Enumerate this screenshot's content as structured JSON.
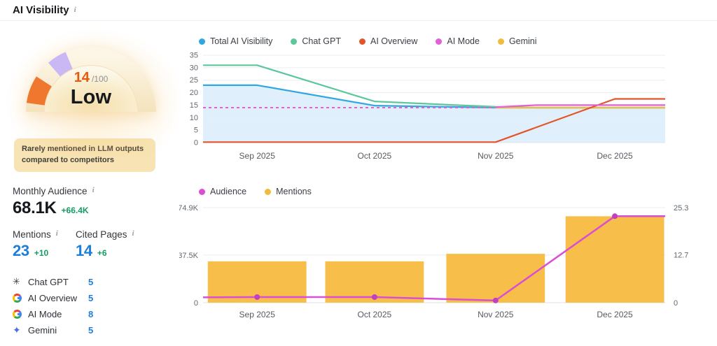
{
  "header": {
    "title": "AI Visibility"
  },
  "colors": {
    "link_blue": "#1d7ed9",
    "positive_green": "#169b62"
  },
  "gauge": {
    "score": "14",
    "score_suffix": "/100",
    "level": "Low",
    "note": "Rarely mentioned in LLM outputs compared to competitors",
    "colors": {
      "score": "#e8590c",
      "segment_low": "#f0772e",
      "segment_marker": "#c9b8f4",
      "ring_top": "#fdf6e6",
      "ring_bottom": "#f4e3bd",
      "inner_center": "#f5deac",
      "inner_mid": "#f9ecca",
      "inner_edge": "#fdf8ec"
    }
  },
  "stats": {
    "monthly_audience": {
      "label": "Monthly Audience",
      "value": "68.1K",
      "change": "+66.4K"
    },
    "mentions": {
      "label": "Mentions",
      "value": "23",
      "change": "+10"
    },
    "cited_pages": {
      "label": "Cited Pages",
      "value": "14",
      "change": "+6"
    }
  },
  "platforms": [
    {
      "icon": "chatgpt-icon",
      "label": "Chat GPT",
      "value": "5"
    },
    {
      "icon": "google-icon",
      "label": "AI Overview",
      "value": "5"
    },
    {
      "icon": "google-icon",
      "label": "AI Mode",
      "value": "8"
    },
    {
      "icon": "gemini-icon",
      "label": "Gemini",
      "value": "5"
    }
  ],
  "chart_data": [
    {
      "type": "line",
      "x_ticks": [
        {
          "label": "Sep 2025",
          "t": 0.117
        },
        {
          "label": "Oct 2025",
          "t": 0.371
        },
        {
          "label": "Nov 2025",
          "t": 0.633
        },
        {
          "label": "Dec 2025",
          "t": 0.891
        }
      ],
      "ylim": [
        0,
        35
      ],
      "y_ticks": [
        0,
        5,
        10,
        15,
        20,
        25,
        30,
        35
      ],
      "grid": true,
      "legend_position": "top",
      "legend": [
        {
          "label": "Total AI Visibility",
          "color": "#2fa8df"
        },
        {
          "label": "Chat GPT",
          "color": "#5cc79c"
        },
        {
          "label": "AI Overview",
          "color": "#e2552b"
        },
        {
          "label": "AI Mode",
          "color": "#e25fd8"
        },
        {
          "label": "Gemini",
          "color": "#f2bb40"
        }
      ],
      "series": [
        {
          "name": "Total AI Visibility",
          "color": "#2fa8df",
          "area_fill": "#d9ecfa",
          "points": [
            [
              0,
              23
            ],
            [
              0.117,
              23
            ],
            [
              0.371,
              14.8
            ],
            [
              0.633,
              14
            ],
            [
              1,
              14
            ]
          ]
        },
        {
          "name": "Chat GPT",
          "color": "#5cc79c",
          "points": [
            [
              0,
              31
            ],
            [
              0.117,
              31
            ],
            [
              0.371,
              16.5
            ],
            [
              0.633,
              14.3
            ],
            [
              0.72,
              14
            ],
            [
              1,
              14
            ]
          ]
        },
        {
          "name": "Gemini",
          "color": "#f2bb40",
          "points": [
            [
              0.633,
              14
            ],
            [
              1,
              14
            ]
          ]
        },
        {
          "name": "AI Overview",
          "color": "#e2552b",
          "points": [
            [
              0,
              0.2
            ],
            [
              0.633,
              0.2
            ],
            [
              0.891,
              17.5
            ],
            [
              1,
              17.5
            ]
          ]
        },
        {
          "name": "AI Mode",
          "color": "#e25fd8",
          "segments": [
            {
              "dashed": true,
              "points": [
                [
                  0,
                  14
                ],
                [
                  0.633,
                  14
                ]
              ]
            },
            {
              "dashed": false,
              "points": [
                [
                  0.633,
                  14.2
                ],
                [
                  0.72,
                  15
                ],
                [
                  1,
                  15
                ]
              ]
            }
          ]
        }
      ]
    },
    {
      "type": "combo_bar_line",
      "x_ticks": [
        {
          "label": "Sep 2025",
          "t": 0.117
        },
        {
          "label": "Oct 2025",
          "t": 0.371
        },
        {
          "label": "Nov 2025",
          "t": 0.633
        },
        {
          "label": "Dec 2025",
          "t": 0.891
        }
      ],
      "legend_position": "top",
      "legend": [
        {
          "label": "Audience",
          "color": "#d94ed2"
        },
        {
          "label": "Mentions",
          "color": "#f2bb40"
        }
      ],
      "left_axis": {
        "max": 74.9,
        "ticks": [
          {
            "label": "74.9K",
            "v": 74.9
          },
          {
            "label": "37.5K",
            "v": 37.5
          },
          {
            "label": "0",
            "v": 0
          }
        ]
      },
      "right_axis": {
        "max": 25.3,
        "ticks": [
          {
            "label": "25.3",
            "v": 25.3
          },
          {
            "label": "12.7",
            "v": 12.7
          },
          {
            "label": "0",
            "v": 0
          }
        ]
      },
      "bars": {
        "name": "Mentions",
        "color": "#f8be4a",
        "axis": "right",
        "values": [
          11,
          11,
          13,
          23
        ]
      },
      "line": {
        "name": "Audience",
        "color": "#d94ed2",
        "dot_color": "#c23fc0",
        "axis": "left",
        "points": [
          [
            0,
            4.2
          ],
          [
            0.117,
            4.4
          ],
          [
            0.371,
            4.4
          ],
          [
            0.633,
            1.7
          ],
          [
            0.891,
            68.1
          ],
          [
            1,
            68.1
          ]
        ],
        "dot_ts": [
          0.117,
          0.371,
          0.633,
          0.891
        ],
        "dot_values": [
          4.4,
          4.4,
          1.7,
          68.1
        ]
      }
    }
  ]
}
